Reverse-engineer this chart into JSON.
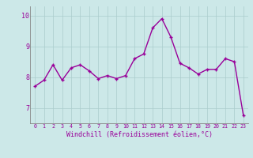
{
  "x": [
    0,
    1,
    2,
    3,
    4,
    5,
    6,
    7,
    8,
    9,
    10,
    11,
    12,
    13,
    14,
    15,
    16,
    17,
    18,
    19,
    20,
    21,
    22,
    23
  ],
  "y": [
    7.7,
    7.9,
    8.4,
    7.9,
    8.3,
    8.4,
    8.2,
    7.95,
    8.05,
    7.95,
    8.05,
    8.6,
    8.75,
    9.6,
    9.9,
    9.3,
    8.45,
    8.3,
    8.1,
    8.25,
    8.25,
    8.6,
    8.5,
    6.75
  ],
  "line_color": "#990099",
  "marker": "+",
  "marker_size": 3.5,
  "line_width": 1.0,
  "bg_color": "#cce8e8",
  "grid_color": "#aacccc",
  "xlabel": "Windchill (Refroidissement éolien,°C)",
  "xlabel_color": "#990099",
  "tick_color": "#990099",
  "ylim": [
    6.5,
    10.3
  ],
  "xlim": [
    -0.5,
    23.5
  ],
  "yticks": [
    7,
    8,
    9,
    10
  ],
  "xticks": [
    0,
    1,
    2,
    3,
    4,
    5,
    6,
    7,
    8,
    9,
    10,
    11,
    12,
    13,
    14,
    15,
    16,
    17,
    18,
    19,
    20,
    21,
    22,
    23
  ],
  "xtick_labels": [
    "0",
    "1",
    "2",
    "3",
    "4",
    "5",
    "6",
    "7",
    "8",
    "9",
    "10",
    "11",
    "12",
    "13",
    "14",
    "15",
    "16",
    "17",
    "18",
    "19",
    "20",
    "21",
    "22",
    "23"
  ],
  "font_family": "monospace",
  "xlabel_fontsize": 6.0,
  "xtick_fontsize": 4.8,
  "ytick_fontsize": 6.0
}
